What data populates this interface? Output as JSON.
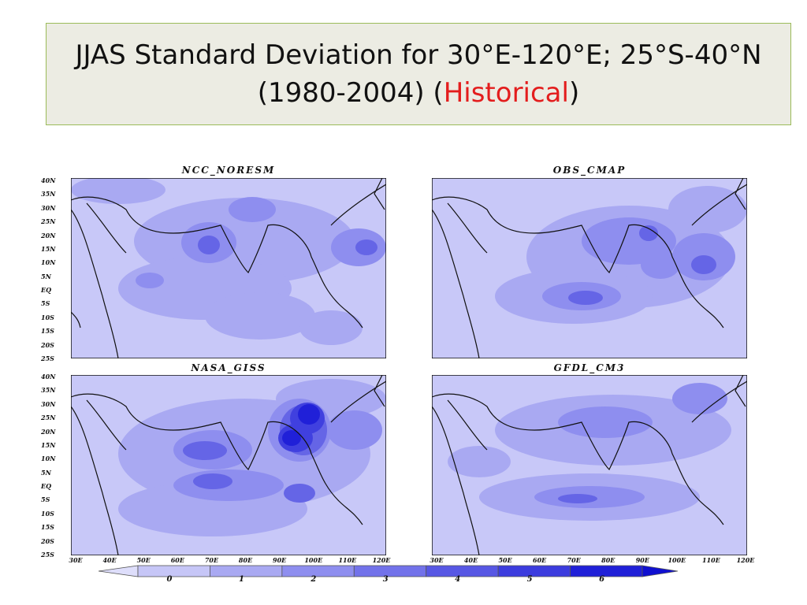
{
  "title": {
    "line1": "JJAS Standard Deviation for 30°E-120°E; 25°S-40°N",
    "line2_prefix": "(1980-2004) (",
    "line2_highlight": "Historical",
    "line2_suffix": ")",
    "highlight_color": "#e31d1d"
  },
  "panels": [
    {
      "title": "NCC_NORESM"
    },
    {
      "title": "OBS_CMAP"
    },
    {
      "title": "NASA_GISS"
    },
    {
      "title": "GFDL_CM3"
    }
  ],
  "axes": {
    "lat_labels": [
      "40N",
      "35N",
      "30N",
      "25N",
      "20N",
      "15N",
      "10N",
      "5N",
      "EQ",
      "5S",
      "10S",
      "15S",
      "20S",
      "25S"
    ],
    "lon_labels": [
      "30E",
      "40E",
      "50E",
      "60E",
      "70E",
      "80E",
      "90E",
      "100E",
      "110E",
      "120E"
    ]
  },
  "colorbar": {
    "labels": [
      "0",
      "1",
      "2",
      "3",
      "4",
      "5",
      "6"
    ],
    "colors": [
      "#c6c6f7",
      "#a9a9f2",
      "#8e8eef",
      "#7272ea",
      "#5757e4",
      "#3c3cde",
      "#2020d8"
    ]
  }
}
